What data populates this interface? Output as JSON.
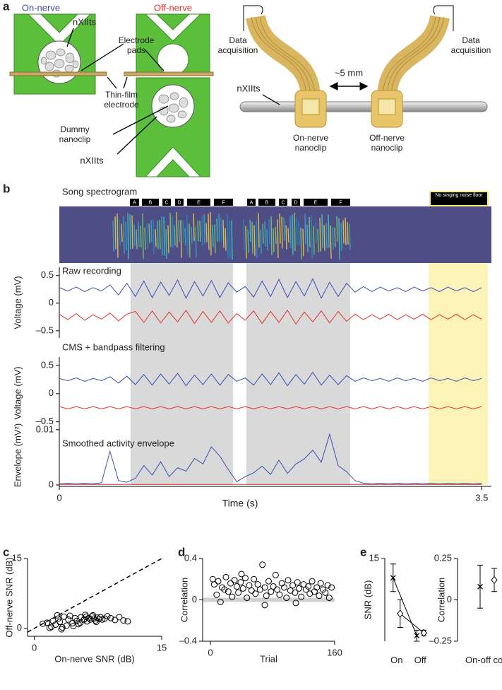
{
  "diagram": {
    "panel_label": "a",
    "on_nerve_title": "On-nerve",
    "off_nerve_title": "Off-nerve",
    "labels": {
      "nxiits_top": "nXIIts",
      "electrode_pads": "Electrode pads",
      "thin_film": "Thin-film electrode",
      "dummy": "Dummy nanoclip",
      "nxiits_bottom": "nXIIts",
      "daq_left": "Data acquisition",
      "daq_right": "Data acquisition",
      "distance": "~5 mm",
      "nxiits_right": "nXIIts",
      "on_clip": "On-nerve nanoclip",
      "off_clip": "Off-nerve nanoclip"
    }
  },
  "chart_data": [
    {
      "type": "multitrace",
      "panel_label": "b",
      "spectrogram_title": "Song spectrogram",
      "syllables": [
        "A",
        "B",
        "C",
        "D",
        "E",
        "F",
        "A",
        "B",
        "C",
        "D",
        "E",
        "F"
      ],
      "noise_floor_label": "No singing noise floor",
      "song_intervals": [
        [
          0.59,
          1.44
        ],
        [
          1.55,
          2.41
        ]
      ],
      "noise_floor_interval": [
        3.06,
        3.55
      ],
      "xlabel": "Time (s)",
      "xlim": [
        0,
        3.58
      ],
      "xticks": [
        0,
        3.5
      ],
      "x": [
        0,
        0.07,
        0.14,
        0.21,
        0.28,
        0.35,
        0.42,
        0.49,
        0.56,
        0.63,
        0.7,
        0.77,
        0.84,
        0.91,
        0.98,
        1.05,
        1.12,
        1.19,
        1.26,
        1.33,
        1.4,
        1.47,
        1.54,
        1.61,
        1.68,
        1.75,
        1.82,
        1.89,
        1.96,
        2.03,
        2.1,
        2.17,
        2.24,
        2.31,
        2.38,
        2.45,
        2.52,
        2.59,
        2.66,
        2.73,
        2.8,
        2.87,
        2.94,
        3.01,
        3.08,
        3.15,
        3.22,
        3.29,
        3.36,
        3.43,
        3.5
      ],
      "tracks": [
        {
          "title": "Raw recording",
          "ylabel": "Voltage (mV)",
          "ylim": [
            -0.63,
            0.65
          ],
          "yticks": [
            0.5,
            0,
            {
              "value": -0.5,
              "label": "–0.5"
            }
          ],
          "series": [
            {
              "color": "#3a4db3",
              "values": [
                0.28,
                0.22,
                0.29,
                0.21,
                0.28,
                0.22,
                0.33,
                0.15,
                0.36,
                0.12,
                0.4,
                0.1,
                0.38,
                0.14,
                0.42,
                0.09,
                0.39,
                0.13,
                0.41,
                0.1,
                0.37,
                0.2,
                0.3,
                0.11,
                0.4,
                0.12,
                0.43,
                0.1,
                0.39,
                0.13,
                0.44,
                0.09,
                0.38,
                0.12,
                0.36,
                0.2,
                0.3,
                0.21,
                0.29,
                0.22,
                0.28,
                0.21,
                0.29,
                0.22,
                0.28,
                0.21,
                0.29,
                0.22,
                0.28,
                0.21,
                0.28
              ]
            },
            {
              "color": "#e2322b",
              "values": [
                -0.2,
                -0.3,
                -0.19,
                -0.31,
                -0.21,
                -0.29,
                -0.18,
                -0.32,
                -0.2,
                -0.15,
                -0.35,
                -0.14,
                -0.36,
                -0.16,
                -0.34,
                -0.13,
                -0.37,
                -0.15,
                -0.35,
                -0.14,
                -0.36,
                -0.19,
                -0.31,
                -0.14,
                -0.37,
                -0.15,
                -0.35,
                -0.13,
                -0.38,
                -0.16,
                -0.34,
                -0.14,
                -0.36,
                -0.15,
                -0.33,
                -0.2,
                -0.3,
                -0.21,
                -0.29,
                -0.2,
                -0.3,
                -0.21,
                -0.29,
                -0.2,
                -0.3,
                -0.21,
                -0.29,
                -0.2,
                -0.3,
                -0.21,
                -0.29
              ]
            }
          ]
        },
        {
          "title": "CMS + bandpass filtering",
          "ylabel": "Voltage (mV)",
          "ylim": [
            -0.63,
            0.65
          ],
          "yticks": [
            0.5,
            0,
            {
              "value": -0.5,
              "label": "–0.5"
            }
          ],
          "series": [
            {
              "color": "#3a4db3",
              "values": [
                0.27,
                0.23,
                0.28,
                0.22,
                0.27,
                0.23,
                0.3,
                0.19,
                0.31,
                0.16,
                0.34,
                0.15,
                0.35,
                0.17,
                0.36,
                0.14,
                0.33,
                0.16,
                0.35,
                0.15,
                0.34,
                0.22,
                0.28,
                0.15,
                0.35,
                0.16,
                0.37,
                0.14,
                0.34,
                0.17,
                0.38,
                0.15,
                0.33,
                0.16,
                0.32,
                0.22,
                0.28,
                0.23,
                0.27,
                0.22,
                0.28,
                0.23,
                0.27,
                0.22,
                0.28,
                0.23,
                0.27,
                0.22,
                0.28,
                0.23,
                0.27
              ]
            },
            {
              "color": "#e2322b",
              "values": [
                -0.23,
                -0.27,
                -0.23,
                -0.27,
                -0.23,
                -0.27,
                -0.23,
                -0.27,
                -0.23,
                -0.27,
                -0.23,
                -0.27,
                -0.23,
                -0.27,
                -0.23,
                -0.27,
                -0.23,
                -0.27,
                -0.23,
                -0.27,
                -0.23,
                -0.27,
                -0.23,
                -0.27,
                -0.23,
                -0.27,
                -0.23,
                -0.27,
                -0.23,
                -0.27,
                -0.23,
                -0.27,
                -0.23,
                -0.27,
                -0.23,
                -0.27,
                -0.23,
                -0.27,
                -0.23,
                -0.27,
                -0.23,
                -0.27,
                -0.23,
                -0.27,
                -0.23,
                -0.27,
                -0.23,
                -0.27,
                -0.23,
                -0.27,
                -0.23
              ]
            }
          ]
        },
        {
          "title": "Smoothed activity envelope",
          "ylabel": "Envelope (mV²)",
          "ylim": [
            -0.00026,
            0.011
          ],
          "yticks": [
            0,
            0.01
          ],
          "series": [
            {
              "color": "#3a4db3",
              "values": [
                0.0002,
                0.0003,
                0.0002,
                0.0003,
                0.0002,
                0.0004,
                0.0061,
                0.0008,
                0.0005,
                0.0012,
                0.0035,
                0.0018,
                0.0042,
                0.0015,
                0.0031,
                0.0025,
                0.0048,
                0.0038,
                0.0069,
                0.0052,
                0.0028,
                0.0006,
                0.0015,
                0.0022,
                0.0034,
                0.0019,
                0.0045,
                0.0021,
                0.0038,
                0.0047,
                0.0063,
                0.0041,
                0.0092,
                0.0035,
                0.0024,
                0.0008,
                0.0003,
                0.0002,
                0.0003,
                0.0002,
                0.0003,
                0.0002,
                0.0003,
                0.0002,
                0.0003,
                0.0002,
                0.0003,
                0.0002,
                0.0003,
                0.0002,
                0.0003
              ]
            },
            {
              "color": "#e2322b",
              "values": [
                0.0001,
                0.0001,
                0.0001,
                0.0001,
                0.0001,
                0.0001,
                0.0001,
                0.0001,
                0.0001,
                0.0001,
                0.0001,
                0.0001,
                0.0001,
                0.0001,
                0.0001,
                0.0001,
                0.0001,
                0.0001,
                0.0001,
                0.0001,
                0.0001,
                0.0001,
                0.0001,
                0.0001,
                0.0001,
                0.0001,
                0.0001,
                0.0001,
                0.0001,
                0.0001,
                0.0001,
                0.0001,
                0.0001,
                0.0001,
                0.0001,
                0.0001,
                0.0001,
                0.0001,
                0.0001,
                0.0001,
                0.0001,
                0.0001,
                0.0001,
                0.0001,
                0.0001,
                0.0001,
                0.0001,
                0.0001,
                0.0001,
                0.0001,
                0.0001
              ]
            }
          ]
        }
      ]
    },
    {
      "type": "scatter",
      "panel_label": "c",
      "xlabel": "On-nerve SNR (dB)",
      "ylabel": "Off-nerve SNR (dB)",
      "xlim": [
        -0.8,
        15
      ],
      "ylim": [
        -1.7,
        15
      ],
      "xticks": [
        0,
        15
      ],
      "yticks": [
        0,
        15
      ],
      "identity_line": true,
      "x": [
        1,
        1.5,
        2,
        2.2,
        2.5,
        2.8,
        3,
        3.2,
        3.5,
        3.8,
        4,
        4.2,
        4.5,
        4.8,
        5,
        5.2,
        5.5,
        5.8,
        6,
        6.2,
        6.4,
        6.6,
        6.8,
        7,
        7.2,
        7.4,
        7.6,
        7.8,
        8,
        8.3,
        8.6,
        9,
        9.5,
        10,
        10.5,
        11,
        3.3,
        4.6,
        5.4,
        6.1,
        6.9,
        7.3,
        2.7,
        1.8,
        5.9
      ],
      "values": [
        1,
        1.2,
        0.3,
        1.6,
        0.8,
        2.1,
        1.4,
        -0.2,
        2.5,
        0.6,
        1.9,
        2.7,
        1.1,
        2.2,
        1.6,
        0.9,
        2.4,
        1.8,
        2.9,
        1.5,
        2.2,
        1.9,
        2.6,
        2.1,
        1.7,
        2.3,
        2,
        2.4,
        1.9,
        2.1,
        2.6,
        2.2,
        1.8,
        2.4,
        1.7,
        1.5,
        0.2,
        0.5,
        1.2,
        2.5,
        2.8,
        1.4,
        2.8,
        0.1,
        2
      ]
    },
    {
      "type": "scatter",
      "panel_label": "d",
      "xlabel": "Trial",
      "ylabel": "Correlation",
      "xlim": [
        -10,
        160
      ],
      "ylim": [
        -0.4,
        0.4
      ],
      "xticks": [
        0,
        160
      ],
      "yticks": [
        0.4,
        0,
        {
          "value": -0.4,
          "label": "–0.4"
        }
      ],
      "zero_band": true,
      "x": [
        3,
        5,
        8,
        10,
        13,
        15,
        18,
        20,
        23,
        26,
        28,
        31,
        34,
        36,
        39,
        42,
        45,
        47,
        50,
        53,
        56,
        58,
        61,
        64,
        67,
        70,
        72,
        75,
        78,
        81,
        84,
        86,
        89,
        92,
        95,
        98,
        100,
        103,
        106,
        109,
        112,
        114,
        117,
        120,
        123,
        126,
        128,
        131,
        134,
        137,
        140,
        142,
        145,
        148,
        151,
        153,
        156,
        70,
        40,
        110
      ],
      "values": [
        0.2,
        0.15,
        0.05,
        0.18,
        -0.02,
        0.12,
        0.1,
        0.22,
        0.08,
        0.16,
        0.03,
        0.19,
        0.13,
        0.07,
        0.17,
        0.11,
        0.21,
        0.02,
        0.14,
        0.09,
        0.2,
        0.06,
        0.15,
        0.1,
        0.34,
        0.12,
        0.04,
        0.18,
        0.08,
        0.13,
        0.24,
        0.1,
        0.05,
        0.16,
        0.12,
        0.02,
        0.19,
        0.09,
        0.14,
        0.07,
        0.17,
        0.11,
        0.03,
        0.15,
        0.1,
        0.13,
        0.06,
        0.18,
        0.08,
        0.12,
        0.04,
        0.16,
        0.1,
        0.07,
        0.14,
        0.02,
        0.12,
        -0.05,
        0.25,
        -0.03
      ]
    },
    {
      "type": "errorbar",
      "panel_label": "e",
      "ylabel": "SNR (dB)",
      "categories": [
        "On",
        "Off"
      ],
      "ylim": [
        0,
        15
      ],
      "yticks": [
        15
      ],
      "connect": true,
      "series": [
        {
          "marker": "x",
          "values": [
            11.5,
            1
          ],
          "errors": [
            2.5,
            1
          ]
        },
        {
          "marker": "diamond",
          "values": [
            5,
            1.5
          ],
          "errors": [
            2.5,
            0.5
          ]
        }
      ]
    },
    {
      "type": "errorbar",
      "ylabel": "Correlation",
      "categories": [
        "On-off corr"
      ],
      "ylim": [
        -0.25,
        0.25
      ],
      "yticks": [
        0.25,
        0,
        {
          "value": -0.25,
          "label": "–0.25"
        }
      ],
      "connect": false,
      "series": [
        {
          "marker": "x",
          "values": [
            0.08
          ],
          "errors": [
            0.13
          ]
        },
        {
          "marker": "diamond",
          "values": [
            0.12
          ],
          "errors": [
            0.07
          ]
        }
      ]
    }
  ]
}
